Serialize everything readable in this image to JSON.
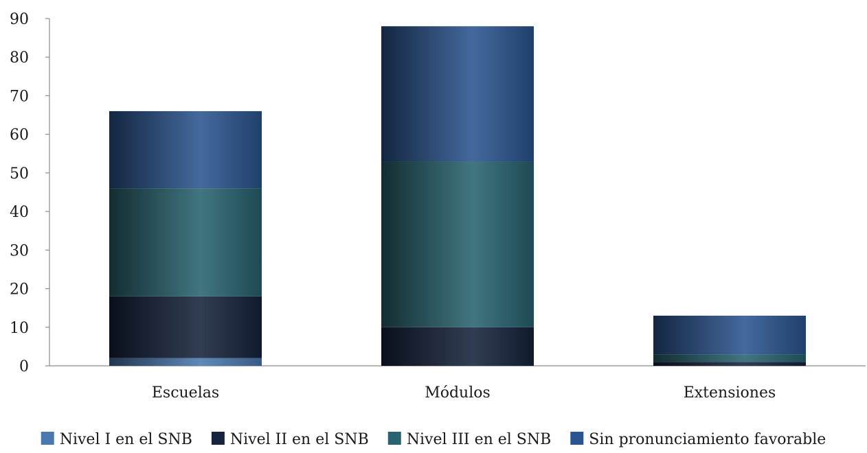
{
  "chart_data": {
    "type": "bar",
    "stacked": true,
    "title": "",
    "xlabel": "",
    "ylabel": "",
    "ylim": [
      0,
      90
    ],
    "yticks": [
      0,
      10,
      20,
      30,
      40,
      50,
      60,
      70,
      80,
      90
    ],
    "grid": false,
    "legend_position": "bottom",
    "categories": [
      "Escuelas",
      "Módulos",
      "Extensiones"
    ],
    "series": [
      {
        "name": "Nivel I en el SNB",
        "color": "#4a79b0",
        "values": [
          2,
          0,
          0
        ]
      },
      {
        "name": "Nivel II en el SNB",
        "color": "#15233c",
        "values": [
          16,
          10,
          1
        ]
      },
      {
        "name": "Nivel III en el SNB",
        "color": "#276370",
        "values": [
          28,
          43,
          2
        ]
      },
      {
        "name": "Sin pronunciamiento favorable",
        "color": "#2b5590",
        "values": [
          20,
          35,
          10
        ]
      }
    ]
  }
}
